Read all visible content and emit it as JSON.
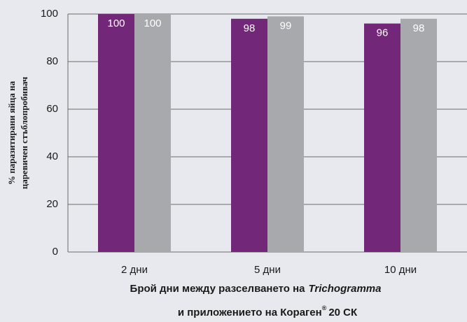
{
  "chart_data": {
    "type": "bar",
    "categories": [
      "2 дни",
      "5 дни",
      "10 дни"
    ],
    "series": [
      {
        "color": "#722779",
        "values": [
          100,
          98,
          96
        ]
      },
      {
        "color": "#a7a9ac",
        "values": [
          100,
          99,
          98
        ]
      }
    ],
    "ylim": [
      0,
      100
    ],
    "yticks": [
      0,
      20,
      40,
      60,
      80,
      100
    ],
    "grid": true,
    "ylabel": [
      "% паразитирани яйца на",
      "царевичен стъблопробивач"
    ],
    "xlabel": [
      [
        "Брой дни между разселването на",
        "Trichogramma"
      ],
      [
        "и приложението на Кораген",
        "®",
        "20 СК"
      ]
    ]
  }
}
